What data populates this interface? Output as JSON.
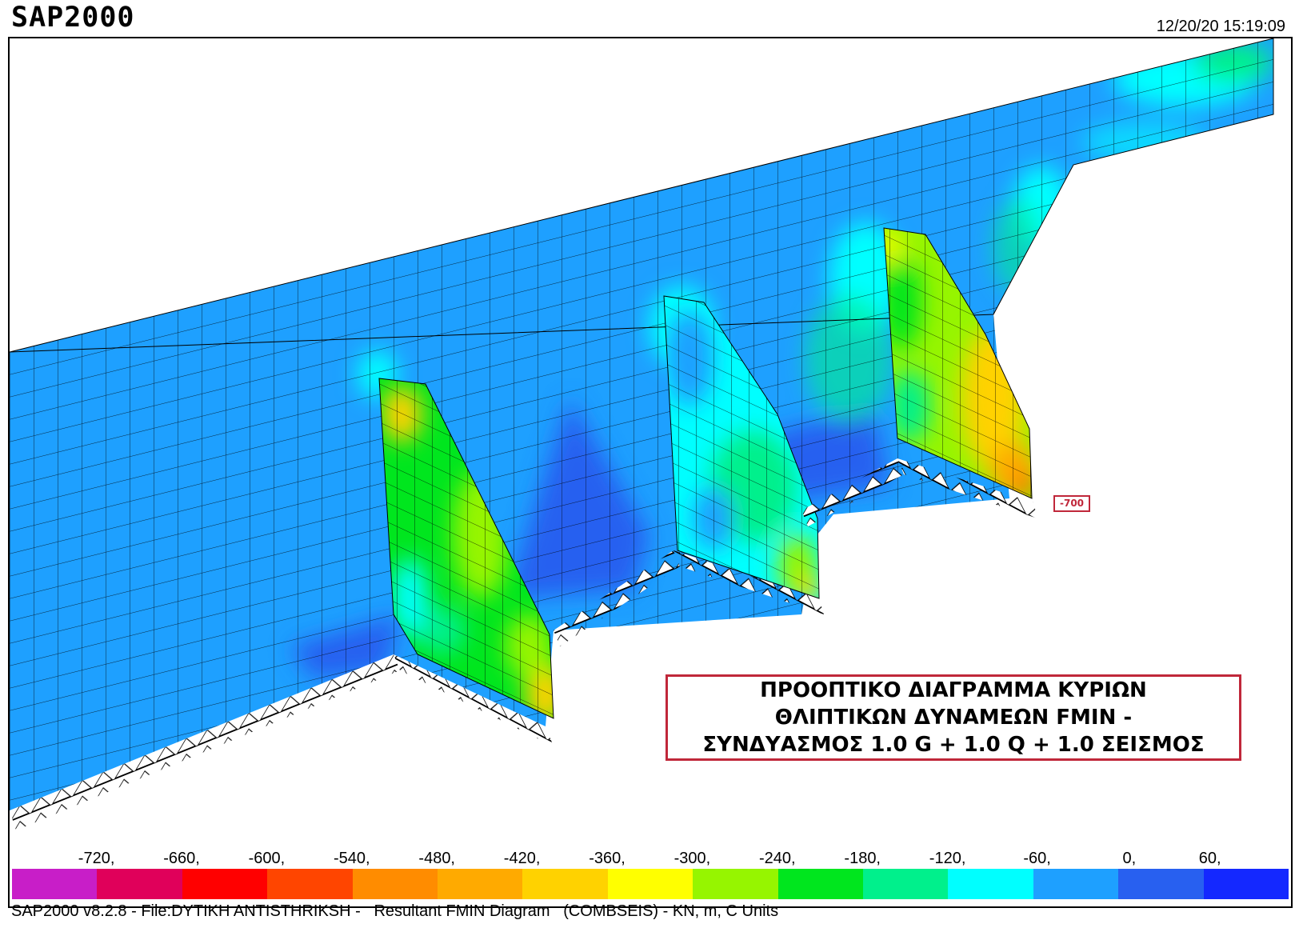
{
  "app": {
    "title": "SAP2000",
    "timestamp": "12/20/20 15:19:09"
  },
  "caption": {
    "line1": "ΠΡΟΟΠΤΙΚΟ ΔΙΑΓΡΑΜΜΑ ΚΥΡΙΩΝ",
    "line2": "ΘΛΙΠΤΙΚΩΝ ΔΥΝΑΜΕΩΝ FMIN -",
    "line3": "ΣΥΝΔΥΑΣΜΟΣ 1.0 G + 1.0 Q + 1.0 ΣΕΙΣΜΟΣ"
  },
  "value_tag": "-700",
  "legend": {
    "labels": [
      "-720,",
      "-660,",
      "-600,",
      "-540,",
      "-480,",
      "-420,",
      "-360,",
      "-300,",
      "-240,",
      "-180,",
      "-120,",
      "-60,",
      "0,",
      "60,"
    ],
    "colors": [
      "#c81ec8",
      "#e0005a",
      "#ff0000",
      "#ff4500",
      "#ff8c00",
      "#ffaa00",
      "#ffd200",
      "#ffff00",
      "#96f500",
      "#00e61e",
      "#00f08c",
      "#00ffff",
      "#1ea0ff",
      "#2860f0",
      "#1428ff"
    ]
  },
  "status_line": "SAP2000 v8.2.8 - File:DYTIKH ANTISTHRIKSH -   Resultant FMIN Diagram   (COMBSEIS) - KN, m, C Units"
}
